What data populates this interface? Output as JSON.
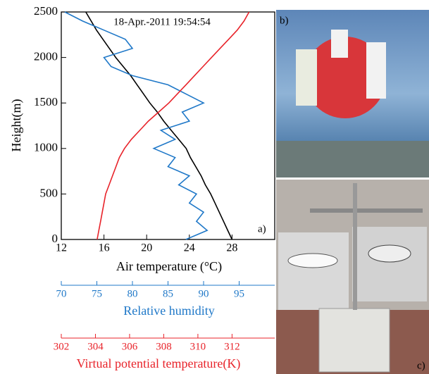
{
  "chart_data": {
    "type": "line",
    "annotation": "18-Apr.-2011 19:54:54",
    "panel_labels": [
      "a)",
      "b)",
      "c)"
    ],
    "ylabel": "Height(m)",
    "xlabel": "Air temperature (°C)",
    "x2label": "Relative humidity",
    "x3label": "Virtual potential temperature(K)",
    "y": [
      0,
      100,
      200,
      300,
      400,
      500,
      600,
      700,
      800,
      900,
      1000,
      1100,
      1200,
      1300,
      1400,
      1500,
      1600,
      1700,
      1800,
      1900,
      2000,
      2100,
      2200,
      2300,
      2400,
      2500
    ],
    "ylim": [
      0,
      2500
    ],
    "yticks": [
      0,
      500,
      1000,
      1500,
      2000,
      2500
    ],
    "xlim": [
      12,
      32
    ],
    "xticks": [
      12,
      16,
      20,
      24,
      28
    ],
    "x2lim": [
      70,
      100
    ],
    "x2ticks": [
      70,
      75,
      80,
      85,
      90,
      95
    ],
    "x3lim": [
      302,
      314.5
    ],
    "x3ticks": [
      302,
      304,
      306,
      308,
      310,
      312
    ],
    "series": [
      {
        "axis": "x",
        "color": "#000000",
        "values": [
          28,
          27.6,
          27.2,
          26.8,
          26.4,
          26.0,
          25.5,
          25.1,
          24.6,
          24.1,
          23.7,
          23.0,
          22.3,
          21.6,
          21.0,
          20.3,
          19.7,
          19.1,
          18.5,
          17.8,
          17.1,
          16.5,
          15.9,
          15.3,
          14.8,
          14.3
        ]
      },
      {
        "axis": "x2",
        "color": "#1f78c8",
        "values": [
          87.5,
          90.5,
          89,
          90,
          88,
          89,
          86.5,
          88,
          85,
          86,
          83,
          86,
          84,
          88,
          87,
          90,
          87.5,
          85,
          80,
          77,
          76,
          80,
          79,
          76,
          73,
          70.5
        ]
      },
      {
        "axis": "x3",
        "color": "#e8232a",
        "values": [
          304.1,
          304.2,
          304.3,
          304.4,
          304.5,
          304.6,
          304.8,
          305.0,
          305.2,
          305.4,
          305.7,
          306.1,
          306.6,
          307.1,
          307.7,
          308.3,
          308.8,
          309.3,
          309.8,
          310.3,
          310.8,
          311.3,
          311.8,
          312.3,
          312.7,
          313.0
        ]
      }
    ]
  }
}
